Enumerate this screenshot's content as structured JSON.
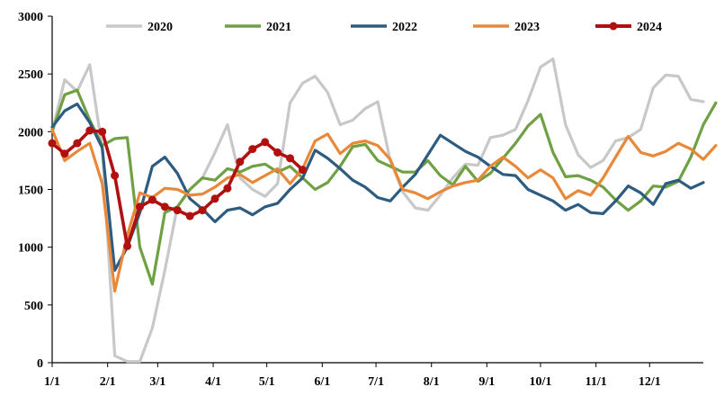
{
  "chart_data": {
    "type": "line",
    "title": "",
    "xlabel": "",
    "ylabel": "",
    "ylim": [
      0,
      3000
    ],
    "yticks": [
      "0",
      "500",
      "1000",
      "1500",
      "2000",
      "2500",
      "3000"
    ],
    "xticks": [
      "1/1",
      "2/1",
      "3/1",
      "4/1",
      "5/1",
      "6/1",
      "7/1",
      "8/1",
      "9/1",
      "10/1",
      "11/1",
      "12/1"
    ],
    "legend_position": "top",
    "grid": false,
    "series": [
      {
        "name": "2020",
        "color": "#c8c8c8",
        "markers": false,
        "values": [
          2000,
          2450,
          2350,
          2580,
          1850,
          60,
          10,
          10,
          300,
          800,
          1350,
          1500,
          1600,
          1820,
          2060,
          1600,
          1500,
          1440,
          1550,
          2250,
          2420,
          2480,
          2340,
          2060,
          2100,
          2200,
          2260,
          1750,
          1480,
          1340,
          1320,
          1450,
          1600,
          1720,
          1710,
          1950,
          1970,
          2020,
          2270,
          2560,
          2630,
          2060,
          1800,
          1690,
          1750,
          1920,
          1950,
          2020,
          2380,
          2490,
          2480,
          2280,
          2260
        ]
      },
      {
        "name": "2021",
        "color": "#70a044",
        "markers": false,
        "values": [
          2000,
          2320,
          2360,
          2100,
          1880,
          1940,
          1950,
          1000,
          680,
          1300,
          1350,
          1500,
          1600,
          1580,
          1680,
          1650,
          1700,
          1720,
          1650,
          1700,
          1600,
          1500,
          1560,
          1700,
          1870,
          1890,
          1750,
          1700,
          1650,
          1650,
          1750,
          1620,
          1540,
          1700,
          1570,
          1640,
          1770,
          1900,
          2050,
          2150,
          1820,
          1610,
          1620,
          1580,
          1520,
          1410,
          1320,
          1400,
          1530,
          1520,
          1570,
          1780,
          2060,
          2250
        ]
      },
      {
        "name": "2022",
        "color": "#2e5c80",
        "markers": false,
        "values": [
          2040,
          2180,
          2240,
          2080,
          1860,
          800,
          1000,
          1300,
          1700,
          1780,
          1640,
          1420,
          1330,
          1220,
          1320,
          1340,
          1280,
          1350,
          1380,
          1500,
          1600,
          1840,
          1770,
          1680,
          1580,
          1520,
          1430,
          1400,
          1520,
          1630,
          1800,
          1970,
          1900,
          1830,
          1780,
          1700,
          1630,
          1620,
          1500,
          1450,
          1400,
          1320,
          1370,
          1300,
          1290,
          1400,
          1530,
          1470,
          1370,
          1550,
          1580,
          1510,
          1560
        ]
      },
      {
        "name": "2023",
        "color": "#e88838",
        "markers": false,
        "values": [
          2020,
          1750,
          1830,
          1900,
          1550,
          620,
          1100,
          1470,
          1430,
          1510,
          1500,
          1450,
          1460,
          1520,
          1600,
          1630,
          1560,
          1620,
          1680,
          1550,
          1680,
          1920,
          1980,
          1810,
          1900,
          1920,
          1880,
          1760,
          1500,
          1470,
          1420,
          1480,
          1530,
          1560,
          1580,
          1700,
          1780,
          1700,
          1600,
          1670,
          1600,
          1420,
          1490,
          1450,
          1600,
          1780,
          1960,
          1820,
          1790,
          1830,
          1900,
          1850,
          1760,
          1880
        ]
      },
      {
        "name": "2024",
        "color": "#b01010",
        "markers": true,
        "values": [
          1900,
          1810,
          1900,
          2010,
          2000,
          1620,
          1010,
          1350,
          1410,
          1350,
          1320,
          1270,
          1320,
          1420,
          1510,
          1740,
          1850,
          1910,
          1820,
          1770,
          1670
        ]
      }
    ]
  }
}
